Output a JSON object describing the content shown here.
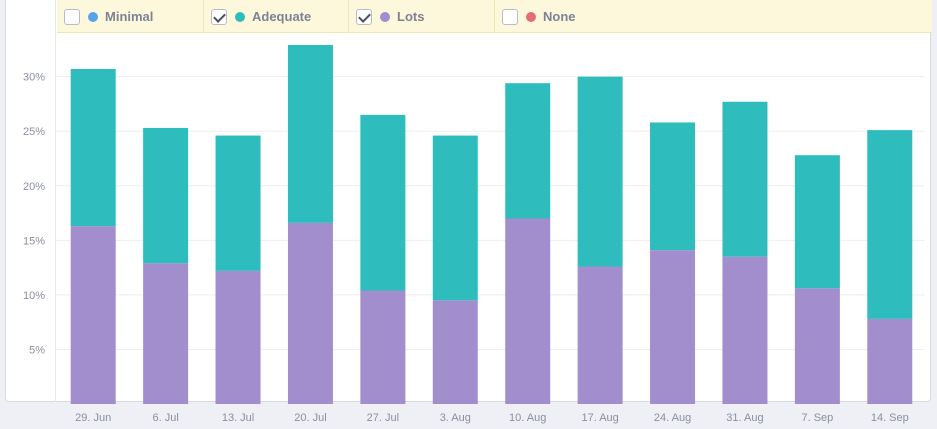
{
  "legend": [
    {
      "label": "Minimal",
      "color": "#55a3e8",
      "checked": false
    },
    {
      "label": "Adequate",
      "color": "#2fbcbd",
      "checked": true
    },
    {
      "label": "Lots",
      "color": "#a28ecd",
      "checked": true
    },
    {
      "label": "None",
      "color": "#e26d74",
      "checked": false
    }
  ],
  "chart_data": {
    "type": "bar",
    "stacked": true,
    "categories": [
      "29. Jun",
      "6. Jul",
      "13. Jul",
      "20. Jul",
      "27. Jul",
      "3. Aug",
      "10. Aug",
      "17. Aug",
      "24. Aug",
      "31. Aug",
      "7. Sep",
      "14. Sep"
    ],
    "series": [
      {
        "name": "Lots",
        "color": "#a28ecd",
        "values": [
          16.3,
          12.9,
          12.2,
          16.6,
          10.4,
          9.5,
          17.0,
          12.6,
          14.1,
          13.5,
          10.6,
          7.8
        ]
      },
      {
        "name": "Adequate",
        "color": "#2fbcbd",
        "values": [
          14.4,
          12.4,
          12.4,
          16.3,
          16.1,
          15.1,
          12.4,
          17.4,
          11.7,
          14.2,
          12.2,
          17.3
        ]
      }
    ],
    "ylim": [
      0,
      34
    ],
    "yticks": [
      5,
      10,
      15,
      20,
      25,
      30
    ],
    "ytick_suffix": "%",
    "grid": true,
    "title": "",
    "xlabel": "",
    "ylabel": ""
  }
}
